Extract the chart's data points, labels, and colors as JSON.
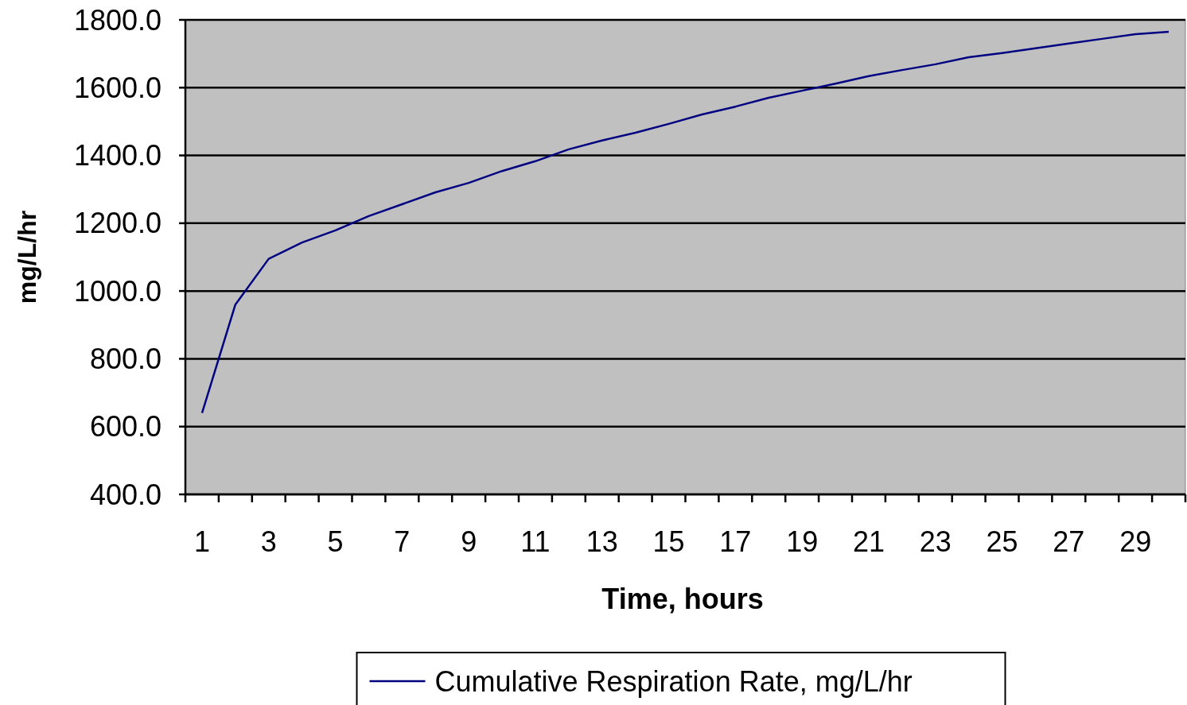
{
  "chart_data": {
    "type": "line",
    "xlabel": "Time, hours",
    "ylabel": "mg/L/hr",
    "x": [
      1,
      2,
      3,
      4,
      5,
      6,
      7,
      8,
      9,
      10,
      11,
      12,
      13,
      14,
      15,
      16,
      17,
      18,
      19,
      20,
      21,
      22,
      23,
      24,
      25,
      26,
      27,
      28,
      29,
      30
    ],
    "xlim": [
      0.5,
      30.5
    ],
    "xticks": [
      1,
      3,
      5,
      7,
      9,
      11,
      13,
      15,
      17,
      19,
      21,
      23,
      25,
      27,
      29,
      {
        "value": 0.5,
        "label": null
      },
      {
        "value": 1.5,
        "label": null
      },
      {
        "value": 2.5,
        "label": null
      },
      {
        "value": 3.5,
        "label": null
      },
      {
        "value": 4.5,
        "label": null
      },
      {
        "value": 5.5,
        "label": null
      },
      {
        "value": 6.5,
        "label": null
      },
      {
        "value": 7.5,
        "label": null
      },
      {
        "value": 8.5,
        "label": null
      },
      {
        "value": 9.5,
        "label": null
      },
      {
        "value": 10.5,
        "label": null
      },
      {
        "value": 11.5,
        "label": null
      },
      {
        "value": 12.5,
        "label": null
      },
      {
        "value": 13.5,
        "label": null
      },
      {
        "value": 14.5,
        "label": null
      },
      {
        "value": 15.5,
        "label": null
      },
      {
        "value": 16.5,
        "label": null
      },
      {
        "value": 17.5,
        "label": null
      },
      {
        "value": 18.5,
        "label": null
      },
      {
        "value": 19.5,
        "label": null
      },
      {
        "value": 20.5,
        "label": null
      },
      {
        "value": 21.5,
        "label": null
      },
      {
        "value": 22.5,
        "label": null
      },
      {
        "value": 23.5,
        "label": null
      },
      {
        "value": 24.5,
        "label": null
      },
      {
        "value": 25.5,
        "label": null
      },
      {
        "value": 26.5,
        "label": null
      },
      {
        "value": 27.5,
        "label": null
      },
      {
        "value": 28.5,
        "label": null
      },
      {
        "value": 29.5,
        "label": null
      },
      {
        "value": 30.5,
        "label": null
      }
    ],
    "series": [
      {
        "name": "Cumulative Respiration Rate, mg/L/hr",
        "color": "#000080",
        "values": [
          640,
          960,
          1095,
          1143,
          1179,
          1221,
          1256,
          1291,
          1319,
          1354,
          1383,
          1418,
          1444,
          1467,
          1493,
          1521,
          1544,
          1570,
          1591,
          1612,
          1634,
          1652,
          1669,
          1690,
          1702,
          1716,
          1730,
          1744,
          1758,
          1765
        ]
      }
    ],
    "ylim": [
      400,
      1800
    ],
    "yticks": [
      {
        "value": 400,
        "label": "400.0"
      },
      {
        "value": 600,
        "label": "600.0"
      },
      {
        "value": 800,
        "label": "800.0"
      },
      {
        "value": 1000,
        "label": "1000.0"
      },
      {
        "value": 1200,
        "label": "1200.0"
      },
      {
        "value": 1400,
        "label": "1400.0"
      },
      {
        "value": 1600,
        "label": "1600.0"
      },
      {
        "value": 1800,
        "label": "1800.0"
      }
    ],
    "grid": "y",
    "legend": "bottom",
    "marker": "none",
    "line_style": "solid"
  }
}
